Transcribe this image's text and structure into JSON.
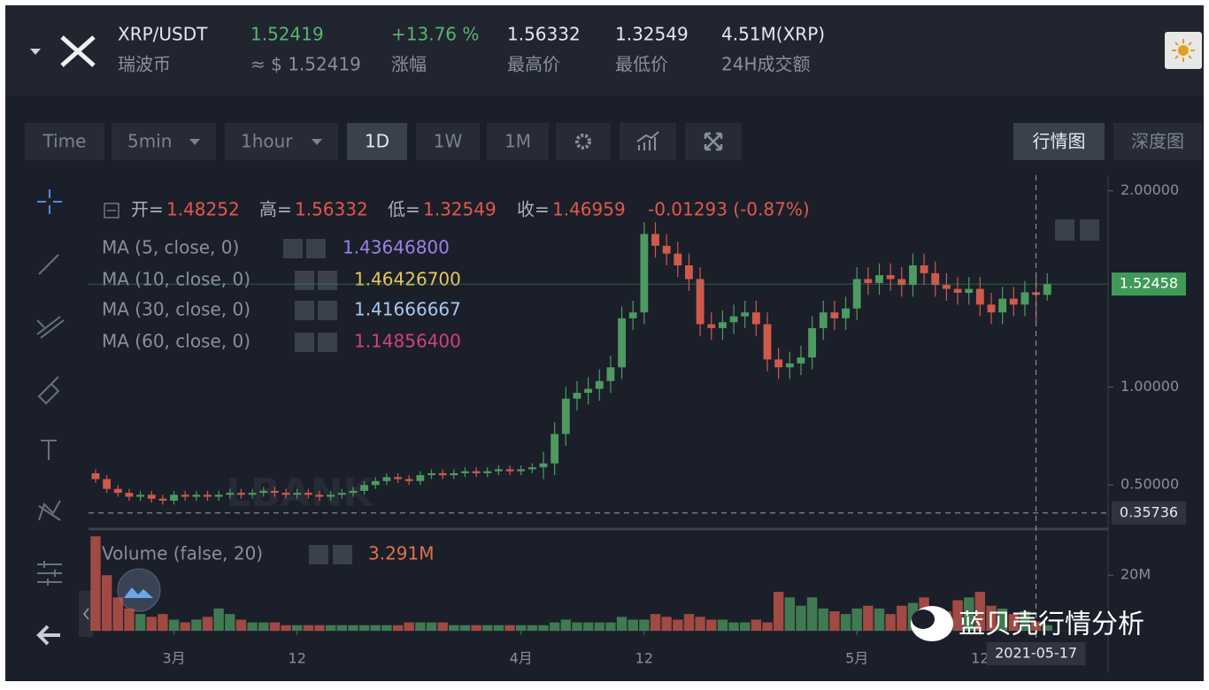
{
  "header": {
    "pair": "XRP/USDT",
    "name": "瑞波币",
    "price": "1.52419",
    "usd_price": "≈ $ 1.52419",
    "change": "+13.76 %",
    "change_label": "涨幅",
    "high": "1.56332",
    "high_label": "最高价",
    "low": "1.32549",
    "low_label": "最低价",
    "volume": "4.51M(XRP)",
    "volume_label": "24H成交额"
  },
  "toolbar": {
    "intervals": [
      "Time",
      "5min",
      "1hour",
      "1D",
      "1W",
      "1M"
    ],
    "active": "1D",
    "views": [
      "行情图",
      "深度图"
    ],
    "active_view": "行情图"
  },
  "watermark": "蓝贝壳行情分析",
  "chart_data": {
    "type": "candlestick",
    "watermark": "LBANK",
    "up_color": "#4e9a60",
    "down_color": "#cf5a4c",
    "ohlc_labels": [
      "开=",
      "高=",
      "低=",
      "收="
    ],
    "change_text": "-0.01293 (-0.87%)",
    "ma": [
      {
        "name": "MA (5, close, 0)",
        "value": "1.43646800",
        "color": "#9b82e6"
      },
      {
        "name": "MA (10, close, 0)",
        "value": "1.46426700",
        "color": "#e6c85a"
      },
      {
        "name": "MA (30, close, 0)",
        "value": "1.41666667",
        "color": "#a9c8ee"
      },
      {
        "name": "MA (60, close, 0)",
        "value": "1.14856400",
        "color": "#d2407e"
      }
    ],
    "open": [
      0.56,
      0.53,
      0.48,
      0.46,
      0.44,
      0.45,
      0.43,
      0.42,
      0.45,
      0.44,
      0.45,
      0.44,
      0.45,
      0.46,
      0.45,
      0.46,
      0.47,
      0.46,
      0.45,
      0.46,
      0.45,
      0.44,
      0.45,
      0.46,
      0.47,
      0.5,
      0.52,
      0.54,
      0.53,
      0.52,
      0.55,
      0.56,
      0.55,
      0.56,
      0.57,
      0.56,
      0.57,
      0.58,
      0.57,
      0.58,
      0.59,
      0.61,
      0.76,
      0.94,
      0.97,
      0.99,
      1.03,
      1.1,
      1.35,
      1.38,
      1.78,
      1.72,
      1.68,
      1.62,
      1.55,
      1.32,
      1.3,
      1.33,
      1.36,
      1.38,
      1.32,
      1.14,
      1.1,
      1.12,
      1.15,
      1.3,
      1.38,
      1.35,
      1.4,
      1.55,
      1.53,
      1.57,
      1.55,
      1.52,
      1.62,
      1.58,
      1.52,
      1.5,
      1.48,
      1.5,
      1.42,
      1.38,
      1.45,
      1.42,
      1.48252,
      1.46959
    ],
    "high": [
      0.58,
      0.55,
      0.5,
      0.48,
      0.47,
      0.47,
      0.45,
      0.47,
      0.47,
      0.47,
      0.47,
      0.47,
      0.48,
      0.48,
      0.48,
      0.49,
      0.49,
      0.48,
      0.48,
      0.48,
      0.47,
      0.47,
      0.48,
      0.49,
      0.52,
      0.54,
      0.56,
      0.56,
      0.55,
      0.57,
      0.58,
      0.58,
      0.58,
      0.59,
      0.59,
      0.59,
      0.6,
      0.6,
      0.6,
      0.61,
      0.67,
      0.82,
      1.0,
      1.03,
      1.05,
      1.09,
      1.16,
      1.41,
      1.44,
      1.84,
      1.84,
      1.78,
      1.74,
      1.68,
      1.61,
      1.38,
      1.39,
      1.42,
      1.44,
      1.44,
      1.38,
      1.2,
      1.18,
      1.21,
      1.36,
      1.44,
      1.44,
      1.46,
      1.61,
      1.61,
      1.63,
      1.63,
      1.61,
      1.68,
      1.68,
      1.64,
      1.58,
      1.56,
      1.56,
      1.56,
      1.48,
      1.51,
      1.51,
      1.54,
      1.56332,
      1.58
    ],
    "low": [
      0.51,
      0.46,
      0.44,
      0.42,
      0.42,
      0.41,
      0.4,
      0.4,
      0.42,
      0.42,
      0.42,
      0.42,
      0.43,
      0.43,
      0.43,
      0.44,
      0.44,
      0.43,
      0.43,
      0.43,
      0.42,
      0.42,
      0.43,
      0.44,
      0.45,
      0.48,
      0.5,
      0.51,
      0.5,
      0.5,
      0.53,
      0.53,
      0.53,
      0.54,
      0.54,
      0.54,
      0.55,
      0.55,
      0.55,
      0.56,
      0.53,
      0.55,
      0.7,
      0.88,
      0.91,
      0.93,
      0.97,
      1.04,
      1.29,
      1.32,
      1.66,
      1.62,
      1.56,
      1.49,
      1.26,
      1.24,
      1.24,
      1.27,
      1.3,
      1.26,
      1.08,
      1.04,
      1.04,
      1.06,
      1.09,
      1.24,
      1.29,
      1.29,
      1.34,
      1.47,
      1.47,
      1.49,
      1.46,
      1.46,
      1.52,
      1.46,
      1.44,
      1.42,
      1.42,
      1.36,
      1.32,
      1.32,
      1.36,
      1.36,
      1.32549,
      1.44
    ],
    "close": [
      0.53,
      0.48,
      0.46,
      0.44,
      0.45,
      0.43,
      0.42,
      0.45,
      0.44,
      0.45,
      0.44,
      0.45,
      0.46,
      0.45,
      0.46,
      0.47,
      0.46,
      0.45,
      0.46,
      0.45,
      0.44,
      0.45,
      0.46,
      0.47,
      0.5,
      0.52,
      0.54,
      0.53,
      0.52,
      0.55,
      0.56,
      0.55,
      0.56,
      0.57,
      0.56,
      0.57,
      0.58,
      0.57,
      0.58,
      0.59,
      0.61,
      0.76,
      0.94,
      0.97,
      0.99,
      1.03,
      1.1,
      1.35,
      1.38,
      1.78,
      1.72,
      1.68,
      1.62,
      1.55,
      1.32,
      1.3,
      1.33,
      1.36,
      1.38,
      1.32,
      1.14,
      1.1,
      1.12,
      1.15,
      1.3,
      1.38,
      1.35,
      1.4,
      1.55,
      1.53,
      1.57,
      1.55,
      1.52,
      1.62,
      1.58,
      1.52,
      1.5,
      1.48,
      1.5,
      1.42,
      1.38,
      1.45,
      1.42,
      1.48252,
      1.46959,
      1.52458
    ],
    "volume": {
      "name": "Volume (false, 20)",
      "values": [
        34,
        20,
        12,
        8,
        6,
        5,
        6,
        4,
        3,
        4,
        5,
        8,
        6,
        4,
        3,
        3,
        3,
        2,
        2,
        2,
        2,
        2,
        2,
        2,
        2,
        2,
        2,
        2,
        3,
        3,
        3,
        3,
        2,
        2,
        2,
        2,
        2,
        2,
        2,
        2,
        2,
        3,
        4,
        3,
        3,
        3,
        3,
        5,
        4,
        4,
        6,
        5,
        4,
        6,
        5,
        4,
        4,
        3,
        3,
        4,
        3,
        14,
        12,
        9,
        12,
        8,
        7,
        6,
        8,
        9,
        8,
        6,
        9,
        10,
        12,
        8,
        7,
        11,
        12,
        14,
        9,
        8,
        6,
        7,
        3.291,
        2
      ],
      "value_labels": {
        "84": "3.291M"
      },
      "ylim": [
        0,
        36
      ],
      "yticks": [
        {
          "value": 20,
          "label": "20M"
        }
      ]
    },
    "ylim": [
      0.28,
      2.08
    ],
    "yticks": [
      {
        "value": 0.5,
        "label": "0.50000"
      },
      {
        "value": 1,
        "label": "1.00000"
      },
      {
        "value": 2,
        "label": "2.00000"
      }
    ],
    "xticks": [
      {
        "value": 7,
        "label": "3月"
      },
      {
        "value": 18,
        "label": "12"
      },
      {
        "value": 38,
        "label": "4月"
      },
      {
        "value": 49,
        "label": "12"
      },
      {
        "value": 68,
        "label": "5月"
      },
      {
        "value": 79,
        "label": "12"
      }
    ],
    "crosshair": {
      "index": 84,
      "date": "2021-05-17",
      "price": 0.35736
    }
  }
}
